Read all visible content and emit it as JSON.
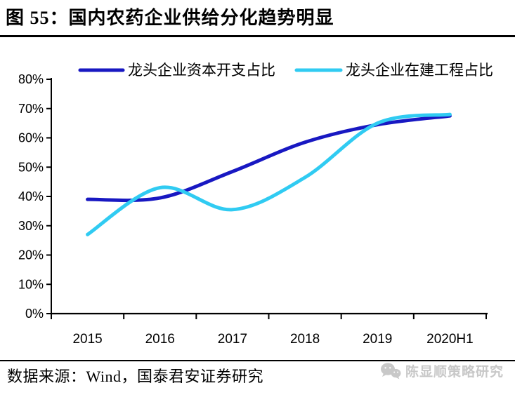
{
  "figure": {
    "title": "图 55：国内农药企业供给分化趋势明显"
  },
  "footer": {
    "source": "数据来源：Wind，国泰君安证券研究"
  },
  "watermark": {
    "icon": "wechat-icon",
    "text": "陈显顺策略研究",
    "color": "#c8c8c8"
  },
  "chart_data": {
    "type": "line",
    "smooth": true,
    "grid": false,
    "legend_position": "top",
    "categories": [
      "2015",
      "2016",
      "2017",
      "2018",
      "2019",
      "2020H1"
    ],
    "series": [
      {
        "name": "龙头企业资本开支占比",
        "color": "#1818C2",
        "values": [
          39,
          39.5,
          48.5,
          58.5,
          64.5,
          67.5
        ]
      },
      {
        "name": "龙头企业在建工程占比",
        "color": "#30CBF2",
        "values": [
          27,
          43,
          35.5,
          46.5,
          65,
          68
        ]
      }
    ],
    "ylim": [
      0,
      80
    ],
    "ytick_labels": [
      "0%",
      "10%",
      "20%",
      "30%",
      "40%",
      "50%",
      "60%",
      "70%",
      "80%"
    ],
    "xlabel": "",
    "ylabel": "",
    "axis_color": "#000000",
    "unit": "percent"
  }
}
